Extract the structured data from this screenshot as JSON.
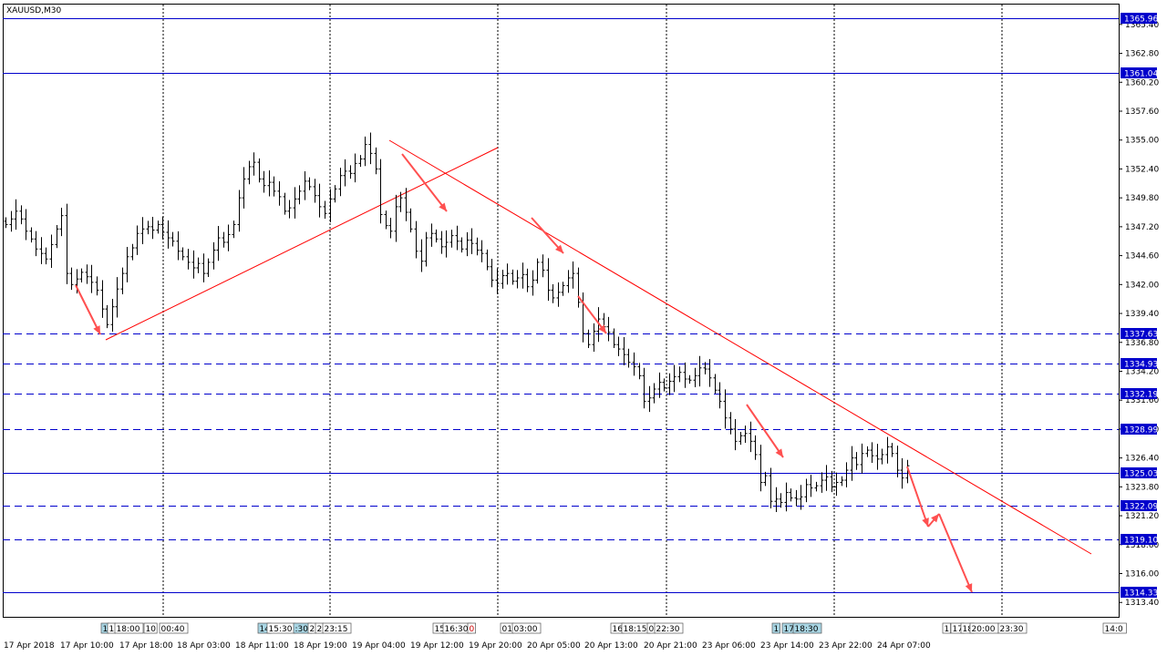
{
  "chart_data": {
    "type": "candlestick",
    "title": "XAUUSD,M30",
    "symbol": "XAUUSD",
    "timeframe": "M30",
    "ylim": [
      1312.0,
      1367.0
    ],
    "y_ticks": [
      1365.4,
      1362.8,
      1360.2,
      1357.6,
      1355.0,
      1352.4,
      1349.8,
      1347.2,
      1344.6,
      1342.0,
      1339.4,
      1336.8,
      1334.2,
      1331.6,
      1329.0,
      1326.4,
      1323.8,
      1321.2,
      1318.6,
      1316.0,
      1313.4
    ],
    "x_labels": [
      "17 Apr 2018",
      "17 Apr 10:00",
      "17 Apr 18:00",
      "18 Apr 03:00",
      "18 Apr 11:00",
      "18 Apr 19:00",
      "19 Apr 04:00",
      "19 Apr 12:00",
      "19 Apr 20:00",
      "20 Apr 05:00",
      "20 Apr 13:00",
      "20 Apr 21:00",
      "23 Apr 06:00",
      "23 Apr 14:00",
      "23 Apr 22:00",
      "24 Apr 07:00"
    ],
    "horizontal_lines": [
      {
        "price": 1365.96,
        "label": "1365.96",
        "style": "solid"
      },
      {
        "price": 1361.04,
        "label": "1361.04",
        "style": "solid"
      },
      {
        "price": 1337.63,
        "label": "1337.63",
        "style": "dashed"
      },
      {
        "price": 1334.93,
        "label": "1334.93",
        "style": "dashed"
      },
      {
        "price": 1332.19,
        "label": "1332.19",
        "style": "dashed"
      },
      {
        "price": 1328.99,
        "label": "1328.99",
        "style": "dashed"
      },
      {
        "price": 1325.03,
        "label": "1325.03",
        "style": "solid"
      },
      {
        "price": 1322.09,
        "label": "1322.09",
        "style": "dashed"
      },
      {
        "price": 1319.1,
        "label": "1319.10",
        "style": "dashed"
      },
      {
        "price": 1314.33,
        "label": "1314.33",
        "style": "solid"
      }
    ],
    "event_markers": [
      "1",
      "1",
      "18:00",
      "10",
      "00:40",
      "14",
      "15:30",
      ":30",
      "2",
      "2",
      "23:15",
      "15",
      "16:30",
      "0",
      "01",
      "03:00",
      "16",
      "18:15",
      "0",
      "22:30",
      "1",
      "17",
      "18:30",
      "1",
      "17",
      "18",
      "20:00",
      "23:30",
      "14:0"
    ],
    "closes": [
      1347.4,
      1347.9,
      1348.6,
      1347.9,
      1346.8,
      1346.1,
      1345.2,
      1344.8,
      1344.3,
      1345.6,
      1347.0,
      1348.2,
      1343.0,
      1342.0,
      1342.5,
      1343.1,
      1342.7,
      1342.2,
      1341.5,
      1339.8,
      1338.4,
      1340.0,
      1341.6,
      1343.0,
      1344.5,
      1345.3,
      1346.6,
      1347.0,
      1347.2,
      1346.9,
      1347.4,
      1346.7,
      1346.2,
      1345.9,
      1345.0,
      1344.5,
      1344.0,
      1343.5,
      1343.9,
      1343.0,
      1344.0,
      1345.1,
      1346.2,
      1345.8,
      1346.5,
      1347.4,
      1349.8,
      1351.5,
      1352.6,
      1353.0,
      1351.5,
      1350.9,
      1351.2,
      1350.4,
      1349.9,
      1348.6,
      1348.9,
      1349.7,
      1350.4,
      1351.3,
      1350.8,
      1350.0,
      1349.0,
      1348.4,
      1349.7,
      1350.6,
      1351.8,
      1352.2,
      1352.0,
      1352.9,
      1353.3,
      1354.6,
      1353.8,
      1352.4,
      1348.3,
      1347.3,
      1346.8,
      1349.0,
      1349.8,
      1348.5,
      1347.0,
      1345.0,
      1344.1,
      1346.2,
      1346.6,
      1346.1,
      1345.4,
      1345.8,
      1346.4,
      1345.9,
      1345.2,
      1346.0,
      1345.7,
      1345.1,
      1344.8,
      1343.6,
      1342.4,
      1342.1,
      1342.8,
      1343.0,
      1342.3,
      1342.6,
      1342.9,
      1341.8,
      1342.4,
      1344.0,
      1343.3,
      1341.5,
      1340.8,
      1341.3,
      1341.9,
      1342.6,
      1343.0,
      1340.4,
      1337.6,
      1336.6,
      1337.8,
      1338.9,
      1338.2,
      1337.7,
      1336.6,
      1336.2,
      1335.7,
      1335.0,
      1334.6,
      1333.8,
      1331.5,
      1331.8,
      1332.6,
      1333.2,
      1332.7,
      1333.3,
      1333.7,
      1334.1,
      1333.5,
      1333.4,
      1333.8,
      1334.5,
      1334.4,
      1333.6,
      1332.5,
      1331.5,
      1330.0,
      1329.0,
      1327.9,
      1328.4,
      1328.6,
      1327.9,
      1326.7,
      1324.2,
      1324.8,
      1322.5,
      1322.7,
      1322.4,
      1323.3,
      1322.8,
      1322.7,
      1322.9,
      1324.0,
      1323.7,
      1323.9,
      1324.4,
      1324.7,
      1323.8,
      1324.2,
      1324.4,
      1325.3,
      1326.4,
      1325.8,
      1326.8,
      1327.1,
      1326.6,
      1326.3,
      1326.7,
      1327.4,
      1326.8,
      1325.3,
      1324.6,
      1325.7
    ]
  }
}
